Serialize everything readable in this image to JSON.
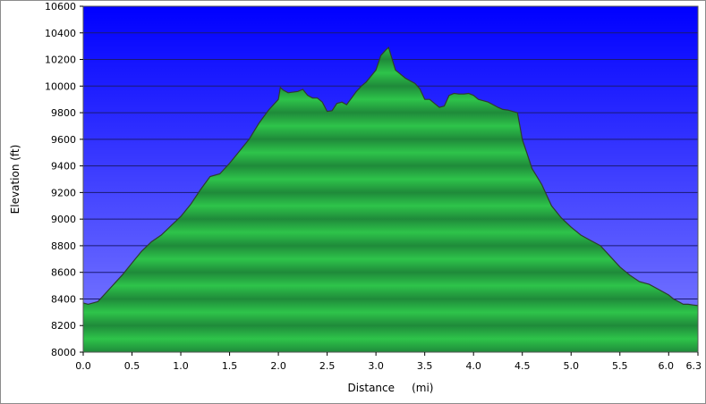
{
  "chart_data": {
    "type": "area",
    "title": "",
    "xlabel": "Distance     (mi)",
    "ylabel": "Elevation (ft)",
    "xlim": [
      0,
      6.3
    ],
    "ylim": [
      8000,
      10600
    ],
    "x_ticks": [
      "0.0",
      "0.5",
      "1.0",
      "1.5",
      "2.0",
      "2.5",
      "3.0",
      "3.5",
      "4.0",
      "4.5",
      "5.0",
      "5.5",
      "6.0",
      "6.3"
    ],
    "y_ticks": [
      "10600",
      "10400",
      "10200",
      "10000",
      "9800",
      "9600",
      "9400",
      "9200",
      "9000",
      "8800",
      "8600",
      "8400",
      "8200",
      "8000"
    ],
    "grid": true,
    "colors": {
      "plot_bg_top": "#0000ff",
      "plot_bg_bottom": "#8080ff",
      "fill_dark": "#1f8a3a",
      "fill_light": "#2ec44a",
      "line": "#2f3b2f"
    },
    "series": [
      {
        "points": [
          [
            0.0,
            8370
          ],
          [
            0.05,
            8360
          ],
          [
            0.1,
            8370
          ],
          [
            0.15,
            8380
          ],
          [
            0.2,
            8420
          ],
          [
            0.3,
            8500
          ],
          [
            0.4,
            8580
          ],
          [
            0.5,
            8670
          ],
          [
            0.6,
            8760
          ],
          [
            0.7,
            8830
          ],
          [
            0.8,
            8880
          ],
          [
            0.9,
            8950
          ],
          [
            1.0,
            9020
          ],
          [
            1.1,
            9110
          ],
          [
            1.2,
            9220
          ],
          [
            1.3,
            9320
          ],
          [
            1.4,
            9340
          ],
          [
            1.5,
            9420
          ],
          [
            1.6,
            9510
          ],
          [
            1.7,
            9600
          ],
          [
            1.8,
            9720
          ],
          [
            1.9,
            9820
          ],
          [
            2.0,
            9900
          ],
          [
            2.02,
            9990
          ],
          [
            2.05,
            9970
          ],
          [
            2.1,
            9950
          ],
          [
            2.2,
            9960
          ],
          [
            2.25,
            9975
          ],
          [
            2.3,
            9930
          ],
          [
            2.35,
            9910
          ],
          [
            2.4,
            9910
          ],
          [
            2.45,
            9880
          ],
          [
            2.5,
            9810
          ],
          [
            2.55,
            9815
          ],
          [
            2.6,
            9870
          ],
          [
            2.65,
            9880
          ],
          [
            2.7,
            9860
          ],
          [
            2.75,
            9910
          ],
          [
            2.8,
            9960
          ],
          [
            2.85,
            10000
          ],
          [
            2.9,
            10030
          ],
          [
            3.0,
            10120
          ],
          [
            3.05,
            10230
          ],
          [
            3.1,
            10270
          ],
          [
            3.13,
            10290
          ],
          [
            3.2,
            10120
          ],
          [
            3.3,
            10060
          ],
          [
            3.35,
            10040
          ],
          [
            3.4,
            10020
          ],
          [
            3.45,
            9980
          ],
          [
            3.5,
            9900
          ],
          [
            3.55,
            9900
          ],
          [
            3.6,
            9870
          ],
          [
            3.65,
            9840
          ],
          [
            3.7,
            9850
          ],
          [
            3.75,
            9930
          ],
          [
            3.8,
            9945
          ],
          [
            3.85,
            9940
          ],
          [
            3.9,
            9940
          ],
          [
            3.95,
            9945
          ],
          [
            4.0,
            9930
          ],
          [
            4.05,
            9900
          ],
          [
            4.1,
            9890
          ],
          [
            4.15,
            9880
          ],
          [
            4.2,
            9860
          ],
          [
            4.25,
            9840
          ],
          [
            4.3,
            9825
          ],
          [
            4.35,
            9820
          ],
          [
            4.4,
            9810
          ],
          [
            4.45,
            9800
          ],
          [
            4.5,
            9600
          ],
          [
            4.6,
            9380
          ],
          [
            4.7,
            9260
          ],
          [
            4.8,
            9100
          ],
          [
            4.9,
            9010
          ],
          [
            5.0,
            8940
          ],
          [
            5.1,
            8880
          ],
          [
            5.2,
            8840
          ],
          [
            5.3,
            8800
          ],
          [
            5.4,
            8720
          ],
          [
            5.5,
            8640
          ],
          [
            5.6,
            8580
          ],
          [
            5.7,
            8530
          ],
          [
            5.8,
            8510
          ],
          [
            5.9,
            8470
          ],
          [
            6.0,
            8430
          ],
          [
            6.05,
            8400
          ],
          [
            6.1,
            8380
          ],
          [
            6.15,
            8360
          ],
          [
            6.2,
            8360
          ],
          [
            6.25,
            8355
          ],
          [
            6.3,
            8350
          ]
        ]
      }
    ]
  }
}
